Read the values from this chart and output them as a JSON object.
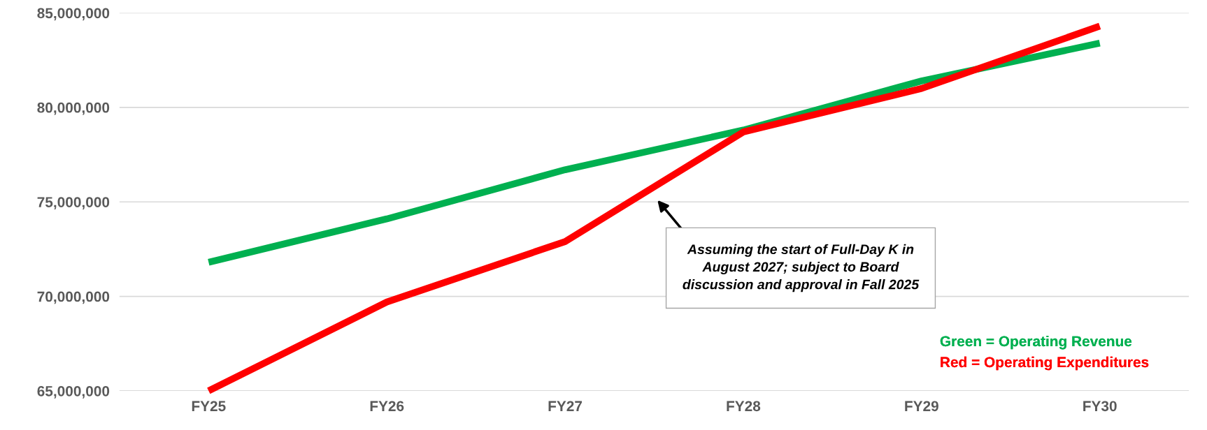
{
  "chart_data": {
    "type": "line",
    "categories": [
      "FY25",
      "FY26",
      "FY27",
      "FY28",
      "FY29",
      "FY30"
    ],
    "series": [
      {
        "name": "Green = Operating Revenue",
        "color": "#00b050",
        "values": [
          71800000,
          74100000,
          76700000,
          78800000,
          81400000,
          83400000
        ]
      },
      {
        "name": "Red = Operating Expenditures",
        "color": "#ff0000",
        "values": [
          65000000,
          69700000,
          72900000,
          78700000,
          81000000,
          84300000
        ]
      }
    ],
    "ylim": [
      65000000,
      85000000
    ],
    "yticks": [
      {
        "value": 65000000,
        "label": "65,000,000"
      },
      {
        "value": 70000000,
        "label": "70,000,000"
      },
      {
        "value": 75000000,
        "label": "75,000,000"
      },
      {
        "value": 80000000,
        "label": "80,000,000"
      },
      {
        "value": 85000000,
        "label": "85,000,000"
      }
    ],
    "grid": "y",
    "legend": "bottom right",
    "marker": "none",
    "line_style": "solid",
    "annotations": [
      "Assuming the start of Full-Day K in\nAugust 2027; subject to Board\ndiscussion and approval in Fall 2025"
    ]
  }
}
